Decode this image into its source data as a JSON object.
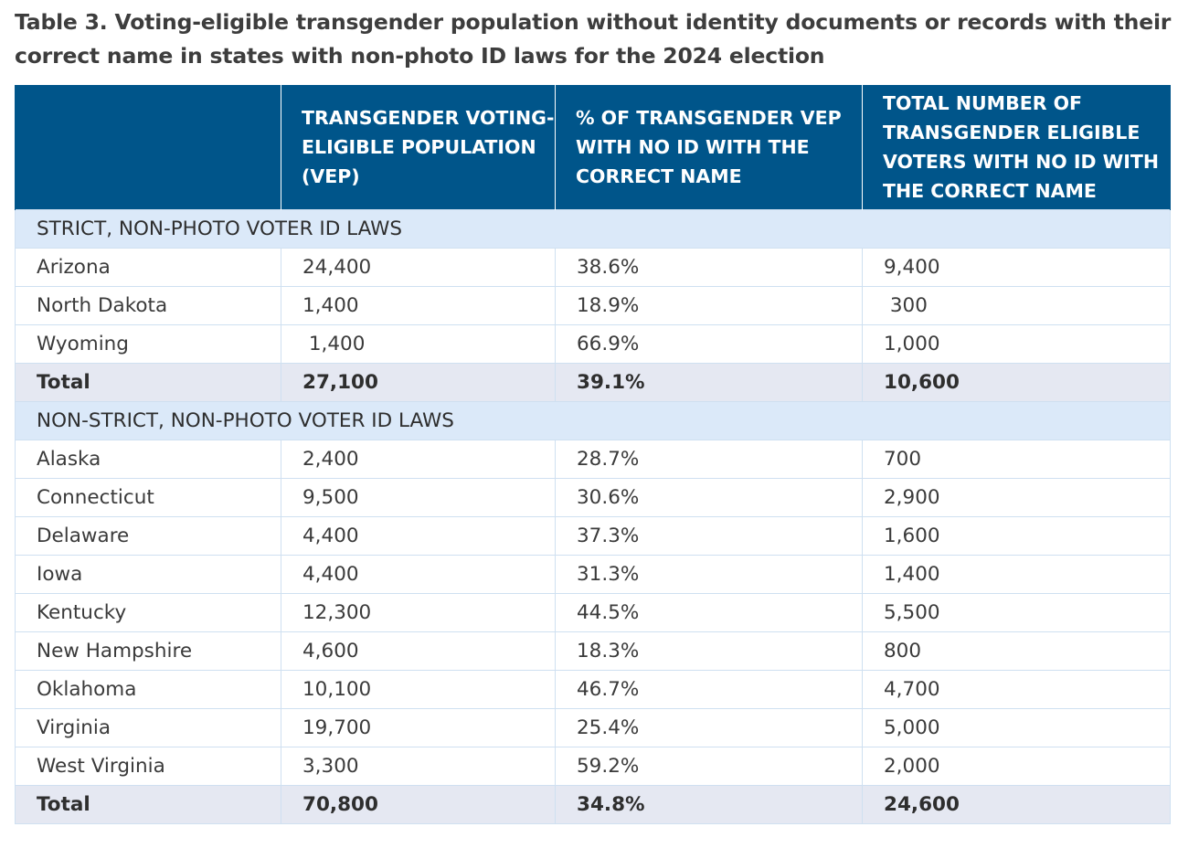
{
  "title": "Table 3. Voting-eligible transgender population without identity documents or records with their correct name in states with non-photo ID laws for the 2024 election",
  "headers": [
    "",
    "TRANSGENDER VOTING-ELIGIBLE POPULATION (VEP)",
    "% OF TRANSGENDER VEP WITH NO ID WITH THE CORRECT NAME",
    "TOTAL NUMBER OF TRANSGENDER ELIGIBLE VOTERS WITH NO ID WITH THE CORRECT NAME"
  ],
  "sections": [
    {
      "label": "STRICT, NON-PHOTO VOTER ID LAWS",
      "rows": [
        [
          "Arizona",
          "24,400",
          "38.6%",
          "9,400"
        ],
        [
          "North Dakota",
          "1,400",
          "18.9%",
          " 300"
        ],
        [
          "Wyoming",
          " 1,400",
          "66.9%",
          "1,000"
        ]
      ],
      "total": [
        "Total",
        "27,100",
        "39.1%",
        "10,600"
      ]
    },
    {
      "label": "NON-STRICT, NON-PHOTO VOTER ID LAWS",
      "rows": [
        [
          "Alaska",
          "2,400",
          "28.7%",
          "700"
        ],
        [
          "Connecticut",
          "9,500",
          "30.6%",
          "2,900"
        ],
        [
          "Delaware",
          "4,400",
          "37.3%",
          "1,600"
        ],
        [
          "Iowa",
          "4,400",
          "31.3%",
          "1,400"
        ],
        [
          "Kentucky",
          "12,300",
          "44.5%",
          "5,500"
        ],
        [
          "New Hampshire",
          "4,600",
          "18.3%",
          "800"
        ],
        [
          "Oklahoma",
          "10,100",
          "46.7%",
          "4,700"
        ],
        [
          "Virginia",
          "19,700",
          "25.4%",
          "5,000"
        ],
        [
          "West Virginia",
          "3,300",
          "59.2%",
          "2,000"
        ]
      ],
      "total": [
        "Total",
        "70,800",
        "34.8%",
        "24,600"
      ]
    }
  ]
}
